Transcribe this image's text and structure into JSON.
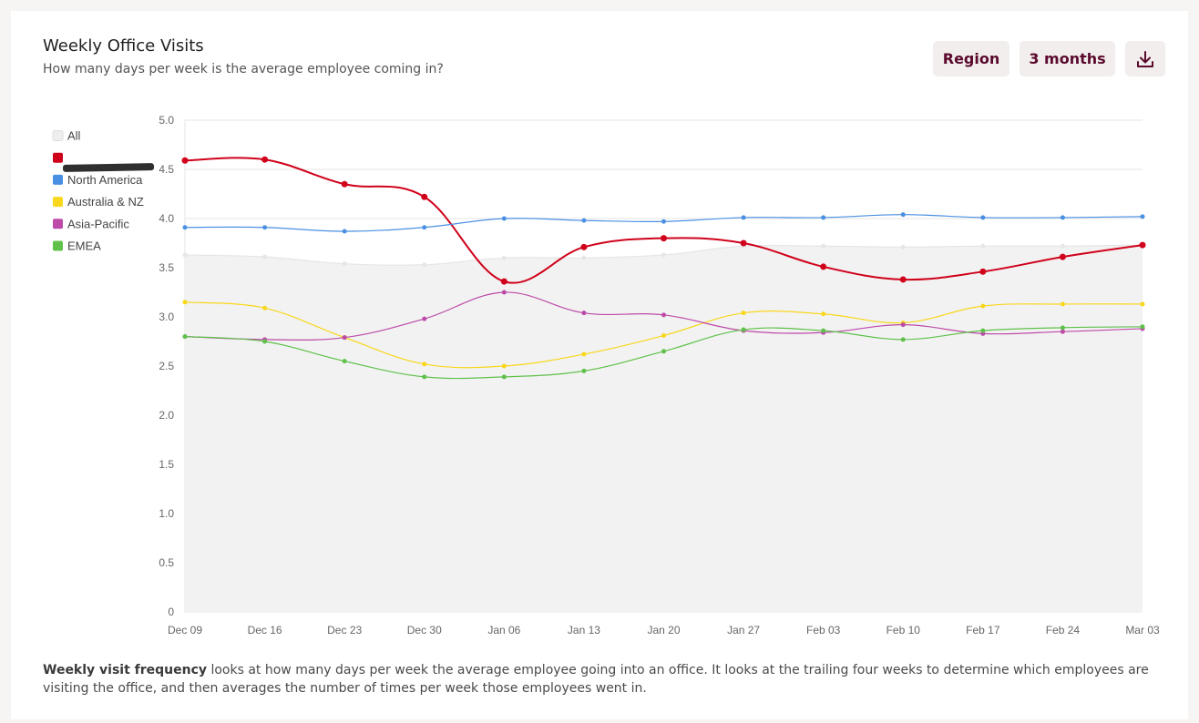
{
  "header": {
    "title": "Weekly Office Visits",
    "subtitle": "How many days per week is the average employee coming in?"
  },
  "controls": {
    "region_label": "Region",
    "range_label": "3 months",
    "download_icon": "download-icon"
  },
  "footer": {
    "bold": "Weekly visit frequency",
    "text": " looks at how many days per week the average employee going into an office. It looks at the trailing four weeks to determine which employees are visiting the office, and then averages the number of times per week those employees went in."
  },
  "chart_data": {
    "type": "line",
    "title": "",
    "xlabel": "",
    "ylabel": "",
    "ylim": [
      0,
      5
    ],
    "yticks": [
      "0",
      "0.5",
      "1.0",
      "1.5",
      "2.0",
      "2.5",
      "3.0",
      "3.5",
      "4.0",
      "4.5",
      "5.0"
    ],
    "categories": [
      "Dec 09",
      "Dec 16",
      "Dec 23",
      "Dec 30",
      "Jan 06",
      "Jan 13",
      "Jan 20",
      "Jan 27",
      "Feb 03",
      "Feb 10",
      "Feb 17",
      "Feb 24",
      "Mar 03"
    ],
    "grid": true,
    "legend_position": "left",
    "series": [
      {
        "name": "All",
        "color": "#e6e6e6",
        "area": true,
        "values": [
          3.63,
          3.61,
          3.54,
          3.53,
          3.6,
          3.6,
          3.63,
          3.72,
          3.72,
          3.71,
          3.72,
          3.72,
          3.73
        ]
      },
      {
        "name": "",
        "color": "#d0021b",
        "emphasis": true,
        "redacted_legend_label": true,
        "values": [
          4.59,
          4.6,
          4.35,
          4.22,
          3.36,
          3.71,
          3.8,
          3.75,
          3.51,
          3.38,
          3.46,
          3.61,
          3.73
        ]
      },
      {
        "name": "North America",
        "color": "#4a90e2",
        "values": [
          3.91,
          3.91,
          3.87,
          3.91,
          4.0,
          3.98,
          3.97,
          4.01,
          4.01,
          4.04,
          4.01,
          4.01,
          4.02
        ]
      },
      {
        "name": "Australia & NZ",
        "color": "#f8d71c",
        "values": [
          3.15,
          3.09,
          2.79,
          2.52,
          2.5,
          2.62,
          2.81,
          3.04,
          3.03,
          2.94,
          3.11,
          3.13,
          3.13
        ]
      },
      {
        "name": "Asia-Pacific",
        "color": "#bd4aa8",
        "values": [
          2.8,
          2.77,
          2.79,
          2.98,
          3.25,
          3.04,
          3.02,
          2.86,
          2.84,
          2.92,
          2.83,
          2.85,
          2.88
        ]
      },
      {
        "name": "EMEA",
        "color": "#5fc14a",
        "values": [
          2.8,
          2.75,
          2.55,
          2.39,
          2.39,
          2.45,
          2.65,
          2.87,
          2.86,
          2.77,
          2.86,
          2.89,
          2.9
        ]
      }
    ]
  }
}
